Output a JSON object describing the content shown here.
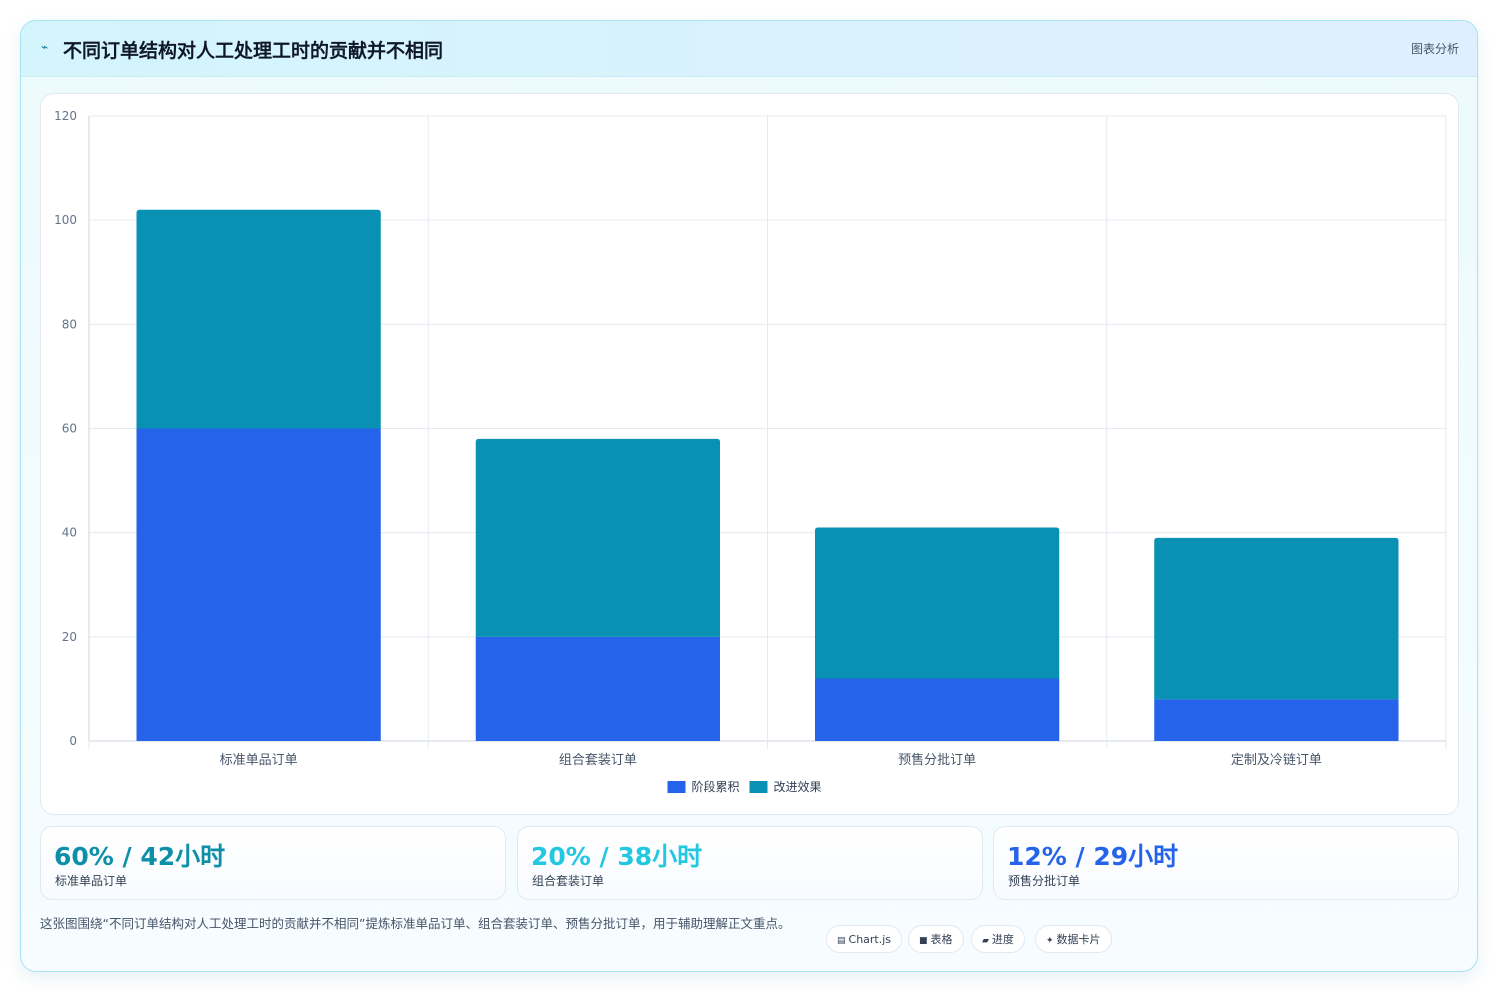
{
  "header": {
    "icon": "wave-icon",
    "title": "不同订单结构对人工处理工时的贡献并不相同",
    "tag": "图表分析"
  },
  "chart_data": {
    "type": "bar",
    "stacked": true,
    "categories": [
      "标准单品订单",
      "组合套装订单",
      "预售分批订单",
      "定制及冷链订单"
    ],
    "series": [
      {
        "name": "阶段累积",
        "color": "#2563eb",
        "values": [
          60,
          20,
          12,
          8
        ]
      },
      {
        "name": "改进效果",
        "color": "#0891b2",
        "values": [
          42,
          38,
          29,
          31
        ]
      }
    ],
    "ylim": [
      0,
      120
    ],
    "yticks": [
      0,
      20,
      40,
      60,
      80,
      100,
      120
    ],
    "grid": true,
    "legend": "bottom-center"
  },
  "stats": [
    {
      "value": "60% / 42小时",
      "label": "标准单品订单",
      "color": "#0e8fa8"
    },
    {
      "value": "20% / 38小时",
      "label": "组合套装订单",
      "color": "#22c7e0"
    },
    {
      "value": "12% / 29小时",
      "label": "预售分批订单",
      "color": "#2563eb"
    }
  ],
  "note": "这张图围绕“不同订单结构对人工处理工时的贡献并不相同”提炼标准单品订单、组合套装订单、预售分批订单，用于辅助理解正文重点。",
  "chips": [
    {
      "icon": "chart-icon",
      "glyph": "▤",
      "label": "Chart.js"
    },
    {
      "icon": "table-icon",
      "glyph": "■",
      "label": "表格"
    },
    {
      "icon": "progress-icon",
      "glyph": "▰",
      "label": "进度"
    },
    {
      "icon": "sparkle-icon",
      "glyph": "✦",
      "label": "数据卡片"
    }
  ]
}
